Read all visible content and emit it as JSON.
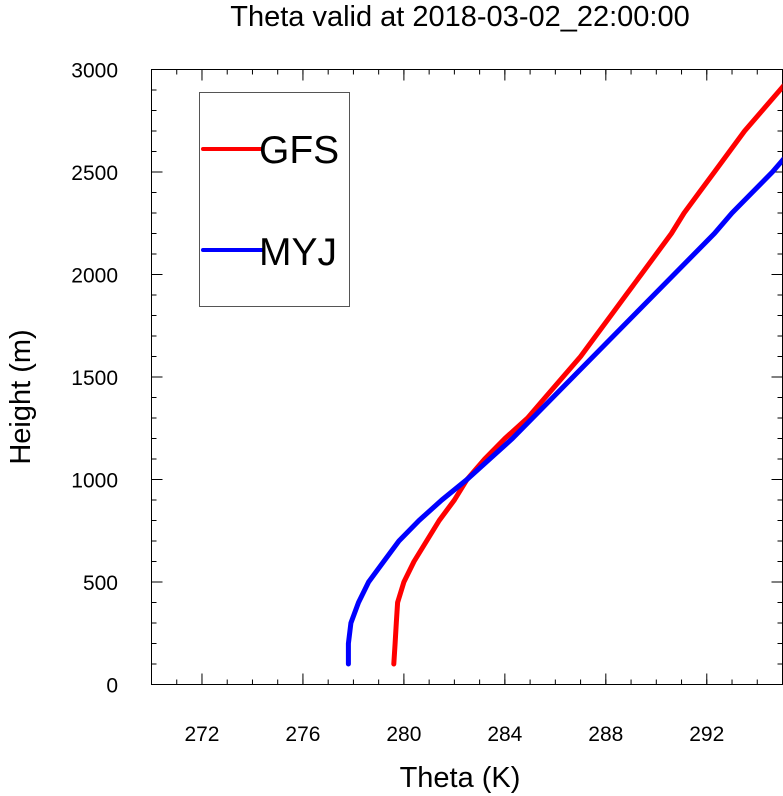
{
  "chart_data": {
    "type": "line",
    "title": "Theta valid at 2018-03-02_22:00:00",
    "xlabel": "Theta (K)",
    "ylabel": "Height (m)",
    "xlim": [
      270,
      295
    ],
    "ylim": [
      0,
      3000
    ],
    "x_ticks": [
      "272",
      "276",
      "280",
      "284",
      "288",
      "292"
    ],
    "y_ticks": [
      "0",
      "500",
      "1000",
      "1500",
      "2000",
      "2500",
      "3000"
    ],
    "legend_position": "top-left",
    "series": [
      {
        "name": "GFS",
        "color": "#ff0000",
        "points": [
          [
            279.6,
            100
          ],
          [
            279.65,
            200
          ],
          [
            279.7,
            300
          ],
          [
            279.75,
            400
          ],
          [
            280.0,
            500
          ],
          [
            280.4,
            600
          ],
          [
            280.9,
            700
          ],
          [
            281.4,
            800
          ],
          [
            282.0,
            900
          ],
          [
            282.5,
            1000
          ],
          [
            283.2,
            1100
          ],
          [
            284.0,
            1200
          ],
          [
            284.9,
            1300
          ],
          [
            285.6,
            1400
          ],
          [
            286.3,
            1500
          ],
          [
            287.0,
            1600
          ],
          [
            287.6,
            1700
          ],
          [
            288.2,
            1800
          ],
          [
            288.8,
            1900
          ],
          [
            289.4,
            2000
          ],
          [
            290.0,
            2100
          ],
          [
            290.6,
            2200
          ],
          [
            291.1,
            2300
          ],
          [
            291.7,
            2400
          ],
          [
            292.3,
            2500
          ],
          [
            292.9,
            2600
          ],
          [
            293.5,
            2700
          ],
          [
            294.2,
            2800
          ],
          [
            294.9,
            2900
          ],
          [
            295.6,
            3000
          ]
        ]
      },
      {
        "name": "MYJ",
        "color": "#0000ff",
        "points": [
          [
            277.8,
            100
          ],
          [
            277.8,
            200
          ],
          [
            277.9,
            300
          ],
          [
            278.2,
            400
          ],
          [
            278.6,
            500
          ],
          [
            279.2,
            600
          ],
          [
            279.8,
            700
          ],
          [
            280.6,
            800
          ],
          [
            281.5,
            900
          ],
          [
            282.5,
            1000
          ],
          [
            283.4,
            1100
          ],
          [
            284.3,
            1200
          ],
          [
            285.1,
            1300
          ],
          [
            285.9,
            1400
          ],
          [
            286.7,
            1500
          ],
          [
            287.5,
            1600
          ],
          [
            288.3,
            1700
          ],
          [
            289.1,
            1800
          ],
          [
            289.9,
            1900
          ],
          [
            290.7,
            2000
          ],
          [
            291.5,
            2100
          ],
          [
            292.3,
            2200
          ],
          [
            293.0,
            2300
          ],
          [
            293.8,
            2400
          ],
          [
            294.6,
            2500
          ],
          [
            295.3,
            2600
          ],
          [
            295.9,
            2680
          ]
        ]
      }
    ]
  }
}
